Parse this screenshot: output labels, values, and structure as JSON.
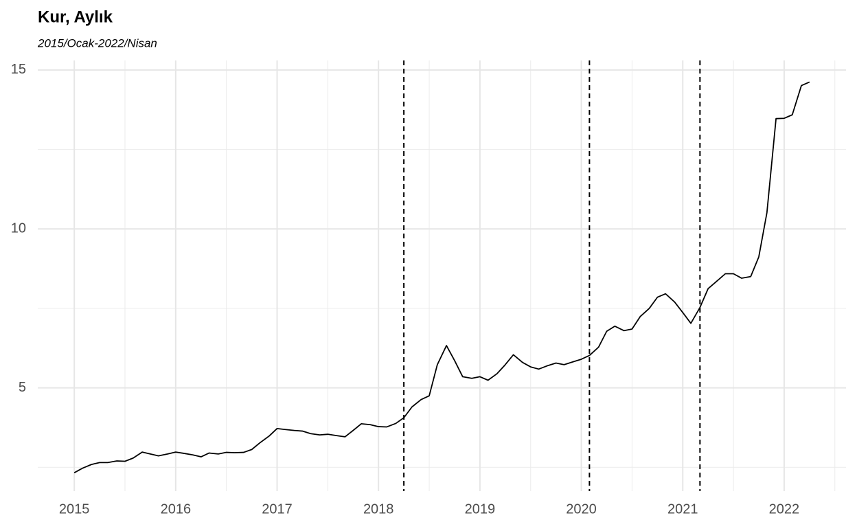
{
  "chart_data": {
    "type": "line",
    "title": "Kur, Aylık",
    "subtitle": "2015/Ocak-2022/Nisan",
    "x": [
      2015.0,
      2015.08,
      2015.17,
      2015.25,
      2015.33,
      2015.42,
      2015.5,
      2015.58,
      2015.67,
      2015.75,
      2015.83,
      2015.92,
      2016.0,
      2016.08,
      2016.17,
      2016.25,
      2016.33,
      2016.42,
      2016.5,
      2016.58,
      2016.67,
      2016.75,
      2016.83,
      2016.92,
      2017.0,
      2017.08,
      2017.17,
      2017.25,
      2017.33,
      2017.42,
      2017.5,
      2017.58,
      2017.67,
      2017.75,
      2017.83,
      2017.92,
      2018.0,
      2018.08,
      2018.17,
      2018.25,
      2018.33,
      2018.42,
      2018.5,
      2018.58,
      2018.67,
      2018.75,
      2018.83,
      2018.92,
      2019.0,
      2019.08,
      2019.17,
      2019.25,
      2019.33,
      2019.42,
      2019.5,
      2019.58,
      2019.67,
      2019.75,
      2019.83,
      2019.92,
      2020.0,
      2020.08,
      2020.17,
      2020.25,
      2020.33,
      2020.42,
      2020.5,
      2020.58,
      2020.67,
      2020.75,
      2020.83,
      2020.92,
      2021.0,
      2021.08,
      2021.17,
      2021.25,
      2021.33,
      2021.42,
      2021.5,
      2021.58,
      2021.67,
      2021.75,
      2021.83,
      2021.92,
      2022.0,
      2022.08,
      2022.17,
      2022.25
    ],
    "series": [
      {
        "color": "#000000",
        "values": [
          2.33,
          2.47,
          2.59,
          2.65,
          2.65,
          2.7,
          2.69,
          2.79,
          2.98,
          2.92,
          2.86,
          2.92,
          2.98,
          2.94,
          2.89,
          2.83,
          2.95,
          2.92,
          2.97,
          2.96,
          2.97,
          3.06,
          3.27,
          3.48,
          3.72,
          3.69,
          3.66,
          3.64,
          3.56,
          3.52,
          3.54,
          3.5,
          3.46,
          3.66,
          3.87,
          3.84,
          3.78,
          3.77,
          3.88,
          4.06,
          4.4,
          4.63,
          4.75,
          5.73,
          6.33,
          5.86,
          5.35,
          5.3,
          5.35,
          5.24,
          5.45,
          5.73,
          6.04,
          5.8,
          5.66,
          5.59,
          5.7,
          5.78,
          5.73,
          5.82,
          5.9,
          6.02,
          6.28,
          6.78,
          6.94,
          6.8,
          6.85,
          7.24,
          7.5,
          7.85,
          7.96,
          7.7,
          7.37,
          7.03,
          7.53,
          8.12,
          8.34,
          8.59,
          8.59,
          8.45,
          8.5,
          9.12,
          10.51,
          13.47,
          13.48,
          13.59,
          14.51,
          14.62
        ]
      }
    ],
    "vlines": [
      2018.25,
      2020.08,
      2021.17
    ],
    "xlim": [
      2014.64,
      2022.61
    ],
    "xticks": [
      2015,
      2016,
      2017,
      2018,
      2019,
      2020,
      2021,
      2022
    ],
    "xminor": [
      2015.5,
      2016.5,
      2017.5,
      2018.5,
      2019.5,
      2020.5,
      2021.5,
      2022.5
    ],
    "ylim": [
      1.75,
      15.3
    ],
    "yticks": [
      5,
      10,
      15
    ],
    "yminor": [
      2.5,
      7.5,
      12.5
    ],
    "grid": true
  }
}
